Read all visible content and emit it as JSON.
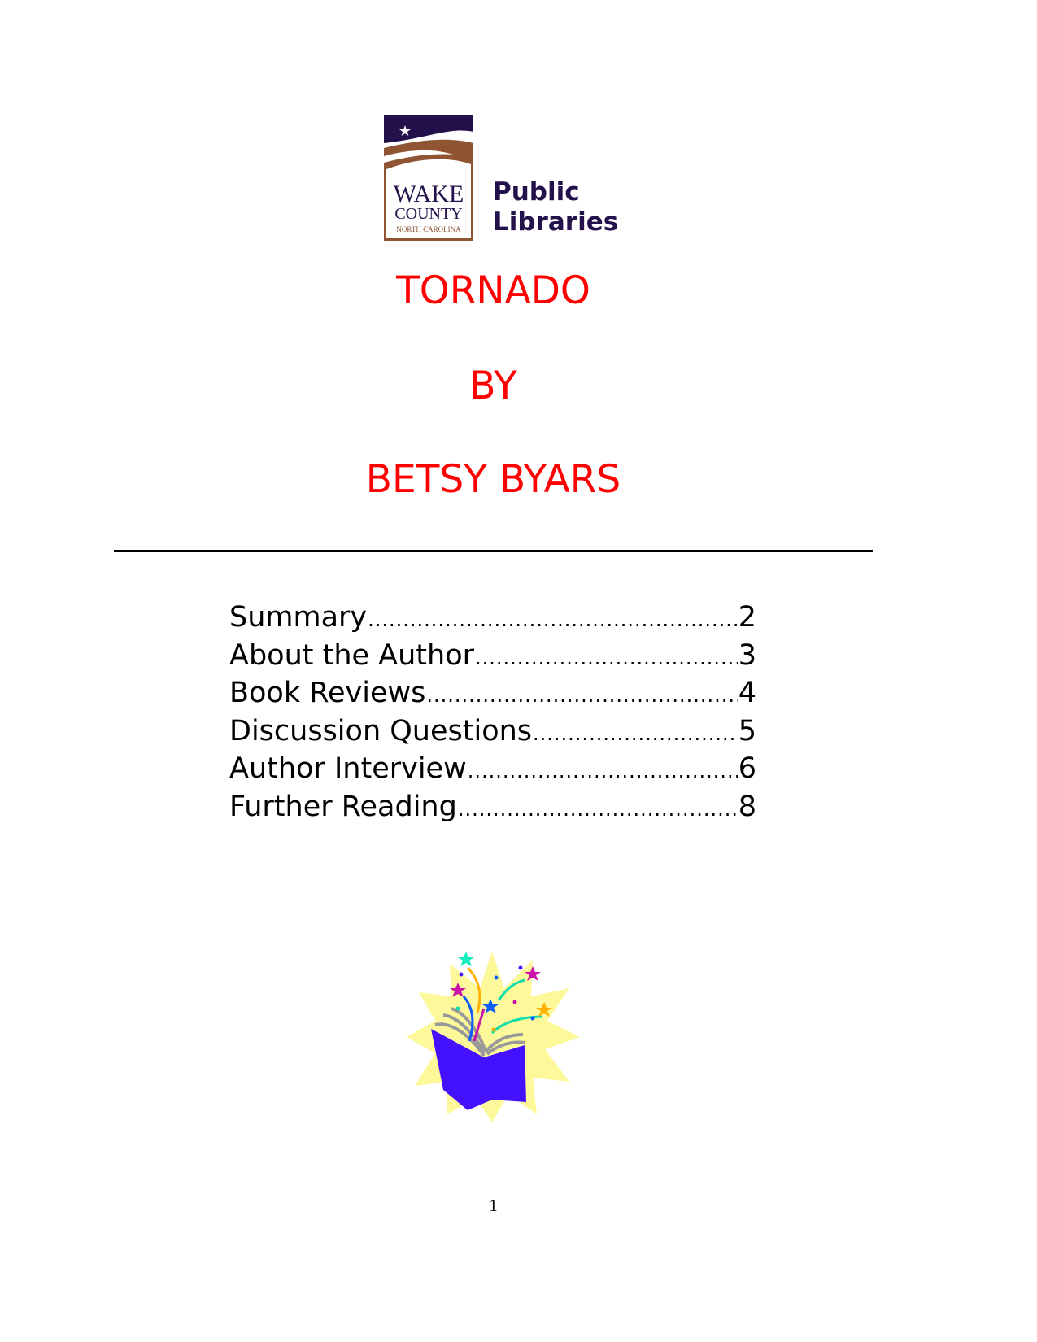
{
  "logo": {
    "wordmark_line1": "WAKE",
    "wordmark_line2": "COUNTY",
    "wordmark_line3": "NORTH CAROLINA",
    "library_line1": "Public",
    "library_line2": "Libraries",
    "colors": {
      "navy": "#22114a",
      "brown": "#8f5432"
    }
  },
  "title": {
    "book": "TORNADO",
    "by": "BY",
    "author": "BETSY BYARS",
    "color": "#ff0000"
  },
  "toc": [
    {
      "label": "Summary",
      "page": "2"
    },
    {
      "label": "About the Author",
      "page": "3"
    },
    {
      "label": "Book Reviews",
      "page": "4"
    },
    {
      "label": "Discussion Questions",
      "page": "5"
    },
    {
      "label": "Author Interview",
      "page": "6"
    },
    {
      "label": "Further Reading",
      "page": "8"
    }
  ],
  "illustration": {
    "icon": "open-book-with-stars-icon"
  },
  "footer": {
    "page_number": "1"
  }
}
